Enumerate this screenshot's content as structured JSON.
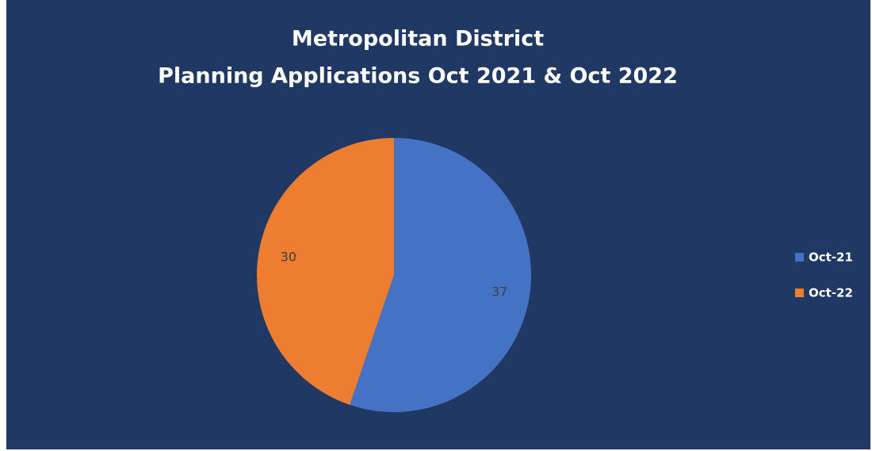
{
  "chart_data": {
    "type": "pie",
    "title": [
      "Metropolitan District",
      "Planning Applications Oct 2021 & Oct 2022"
    ],
    "categories": [
      "Oct-21",
      "Oct-22"
    ],
    "values": [
      37,
      30
    ],
    "colors": [
      "#4472c4",
      "#ed7d31"
    ],
    "legend": "right"
  }
}
